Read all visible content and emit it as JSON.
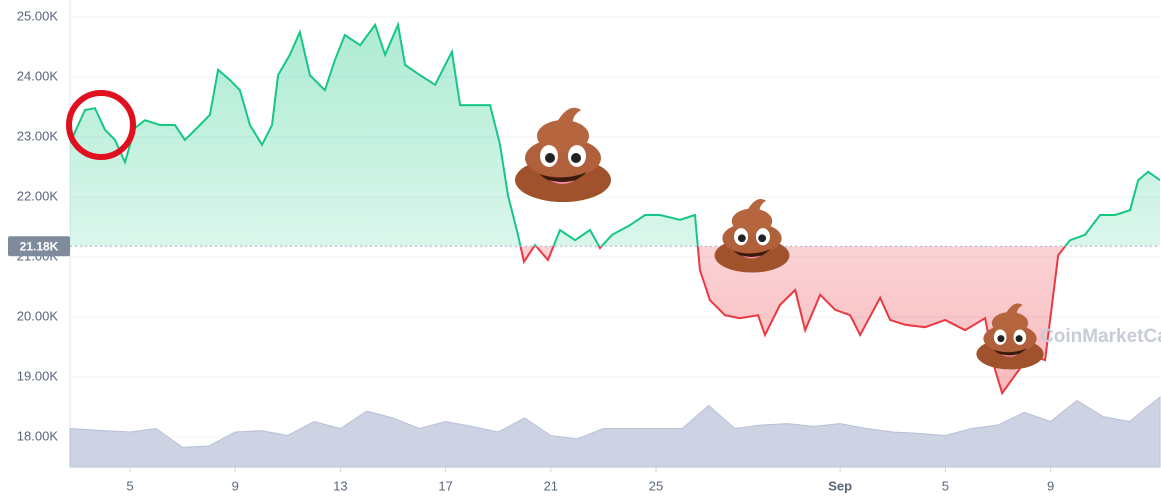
{
  "chart_data": {
    "type": "line",
    "x": [
      2.72,
      3.29,
      3.67,
      4.05,
      4.43,
      4.81,
      5.19,
      5.57,
      6.14,
      6.71,
      7.09,
      7.66,
      8.04,
      8.35,
      8.8,
      9.18,
      9.56,
      10.02,
      10.4,
      10.63,
      11.08,
      11.46,
      11.84,
      12.41,
      12.79,
      13.17,
      13.75,
      14.32,
      14.7,
      15.19,
      15.46,
      16.03,
      16.6,
      17.24,
      17.55,
      18.12,
      18.69,
      19.07,
      19.37,
      19.75,
      19.98,
      20.4,
      20.89,
      21.35,
      21.92,
      22.49,
      22.87,
      23.33,
      24.01,
      24.58,
      25.15,
      25.91,
      26.48,
      26.67,
      27.05,
      27.62,
      28.19,
      28.88,
      29.14,
      29.71,
      30.29,
      30.67,
      31.24,
      31.81,
      32.38,
      32.76,
      33.52,
      33.9,
      34.47,
      35.23,
      35.99,
      36.75,
      37.51,
      37.89,
      38.16,
      38.65,
      39.22,
      39.79,
      40.29,
      40.74,
      41.31,
      41.88,
      42.45,
      43.02,
      43.33,
      43.71,
      44.16
    ],
    "series": [
      {
        "values": [
          22900,
          23450,
          23480,
          23120,
          22950,
          22580,
          23150,
          23280,
          23200,
          23200,
          22950,
          23200,
          23370,
          24120,
          23950,
          23780,
          23200,
          22870,
          23200,
          24030,
          24370,
          24750,
          24030,
          23780,
          24280,
          24700,
          24530,
          24870,
          24370,
          24870,
          24200,
          24030,
          23870,
          24420,
          23530,
          23530,
          23530,
          22870,
          22030,
          21370,
          20920,
          21200,
          20950,
          21450,
          21280,
          21450,
          21150,
          21370,
          21530,
          21700,
          21700,
          21620,
          21700,
          20780,
          20280,
          20030,
          19980,
          20030,
          19700,
          20200,
          20450,
          19780,
          20370,
          20120,
          20030,
          19700,
          20320,
          19950,
          19870,
          19830,
          19950,
          19780,
          19980,
          19120,
          18730,
          19030,
          19370,
          19280,
          21030,
          21280,
          21370,
          21700,
          21700,
          21780,
          22280,
          22420,
          22280
        ],
        "color_up": "#16c784",
        "color_down": "#ea3943"
      }
    ],
    "reference": {
      "value": 21180,
      "label": "21.18K"
    },
    "volume": {
      "x": [
        2.72,
        4,
        5,
        6,
        7,
        8,
        9,
        10,
        11,
        12,
        13,
        14,
        15,
        16,
        17,
        18,
        19,
        20,
        21,
        22,
        23,
        24,
        25,
        26,
        27,
        28,
        29,
        30,
        31,
        32,
        33,
        34,
        35,
        36,
        37,
        38,
        39,
        40,
        41,
        42,
        43,
        44.16
      ],
      "values": [
        55,
        52,
        50,
        55,
        28,
        30,
        50,
        52,
        45,
        65,
        55,
        80,
        70,
        55,
        65,
        58,
        50,
        70,
        45,
        40,
        55,
        55,
        55,
        55,
        88,
        55,
        60,
        62,
        58,
        62,
        55,
        50,
        48,
        45,
        55,
        60,
        78,
        65,
        95,
        72,
        65,
        100
      ],
      "color": "#cdd3e3"
    },
    "xlim": [
      2.72,
      44.16
    ],
    "xticks": [
      5,
      9,
      13,
      17,
      21,
      25,
      {
        "value": 32,
        "label": "Sep"
      },
      {
        "value": 36,
        "label": "5"
      },
      {
        "value": 40,
        "label": "9"
      }
    ],
    "ylim": [
      17500,
      25283
    ],
    "yticks": [
      {
        "value": 18000,
        "label": "18.00K"
      },
      {
        "value": 19000,
        "label": "19.00K"
      },
      {
        "value": 20000,
        "label": "20.00K"
      },
      {
        "value": 21000,
        "label": "21.00K"
      },
      {
        "value": 22000,
        "label": "22.00K"
      },
      {
        "value": 23000,
        "label": "23.00K"
      },
      {
        "value": 24000,
        "label": "24.00K"
      },
      {
        "value": 25000,
        "label": "25.00K"
      }
    ],
    "grid": true,
    "watermark": "CoinMarketCap"
  }
}
